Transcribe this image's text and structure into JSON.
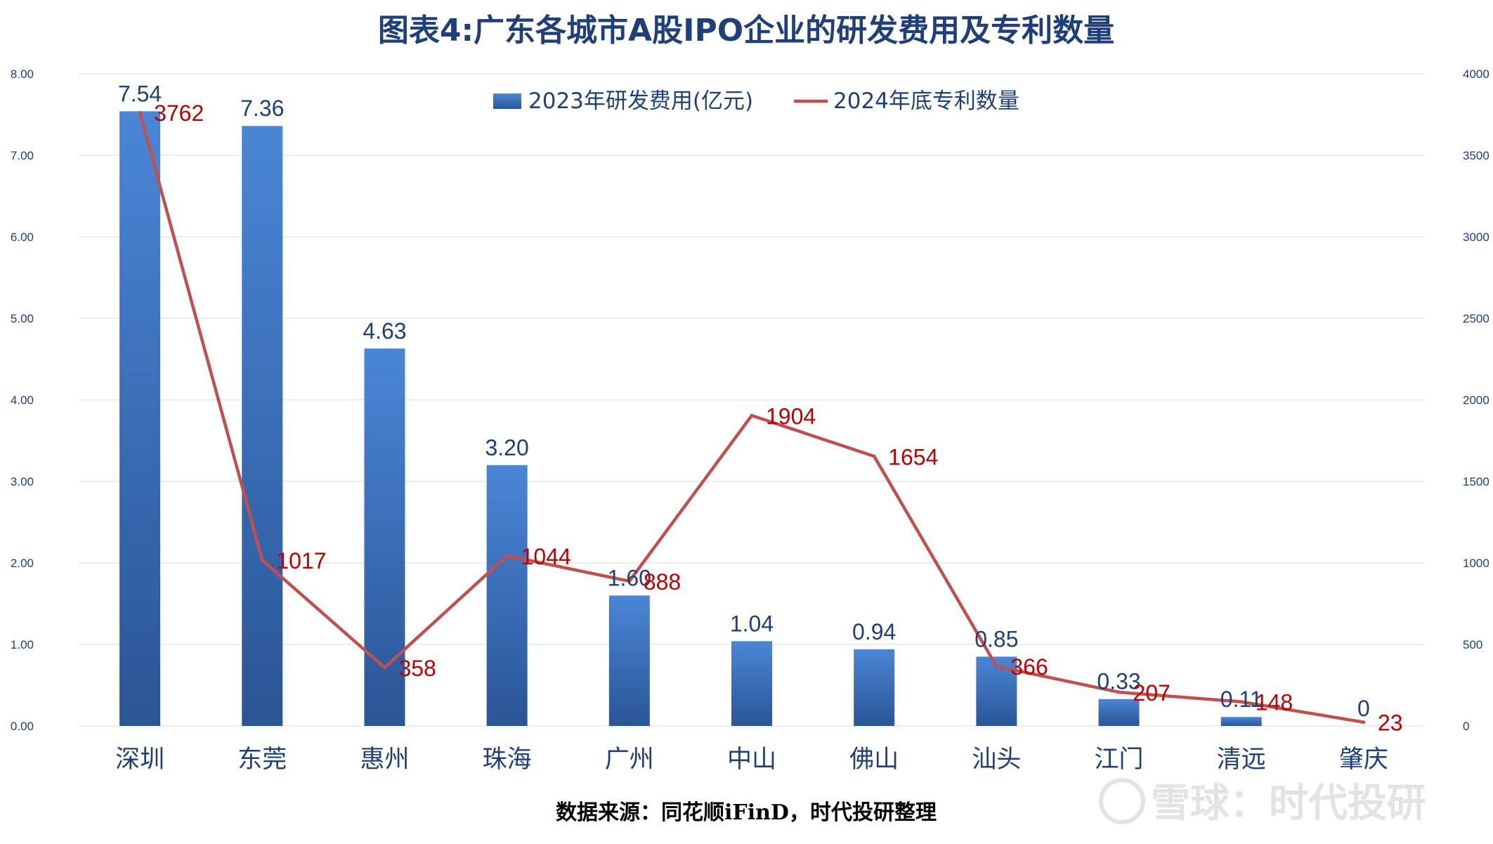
{
  "chart_data": {
    "type": "bar",
    "title": "图表4:广东各城市A股IPO企业的研发费用及专利数量",
    "categories": [
      "深圳",
      "东莞",
      "惠州",
      "珠海",
      "广州",
      "中山",
      "佛山",
      "汕头",
      "江门",
      "清远",
      "肇庆"
    ],
    "series": [
      {
        "name": "2023年研发费用(亿元)",
        "type": "bar",
        "axis": "left",
        "color": "#3b74c4",
        "values": [
          7.54,
          7.36,
          4.63,
          3.2,
          1.6,
          1.04,
          0.94,
          0.85,
          0.33,
          0.11,
          0
        ],
        "labels": [
          "7.54",
          "7.36",
          "4.63",
          "3.20",
          "1.60",
          "1.04",
          "0.94",
          "0.85",
          "0.33",
          "0.11",
          "0"
        ]
      },
      {
        "name": "2024年底专利数量",
        "type": "line",
        "axis": "right",
        "color": "#c0504d",
        "values": [
          3762,
          1017,
          358,
          1044,
          888,
          1904,
          1654,
          366,
          207,
          148,
          23
        ],
        "labels": [
          "3762",
          "1017",
          "358",
          "1044",
          "888",
          "1904",
          "1654",
          "366",
          "207",
          "148",
          "23"
        ]
      }
    ],
    "y_left": {
      "min": 0,
      "max": 8,
      "ticks": [
        "0.00",
        "1.00",
        "2.00",
        "3.00",
        "4.00",
        "5.00",
        "6.00",
        "7.00",
        "8.00"
      ]
    },
    "y_right": {
      "min": 0,
      "max": 4000,
      "ticks": [
        "0",
        "500",
        "1000",
        "1500",
        "2000",
        "2500",
        "3000",
        "3500",
        "4000"
      ]
    },
    "grid": true,
    "legend_position": "top-center",
    "source": "数据来源：同花顺iFinD，时代投研整理"
  },
  "watermark": "雪球：时代投研"
}
